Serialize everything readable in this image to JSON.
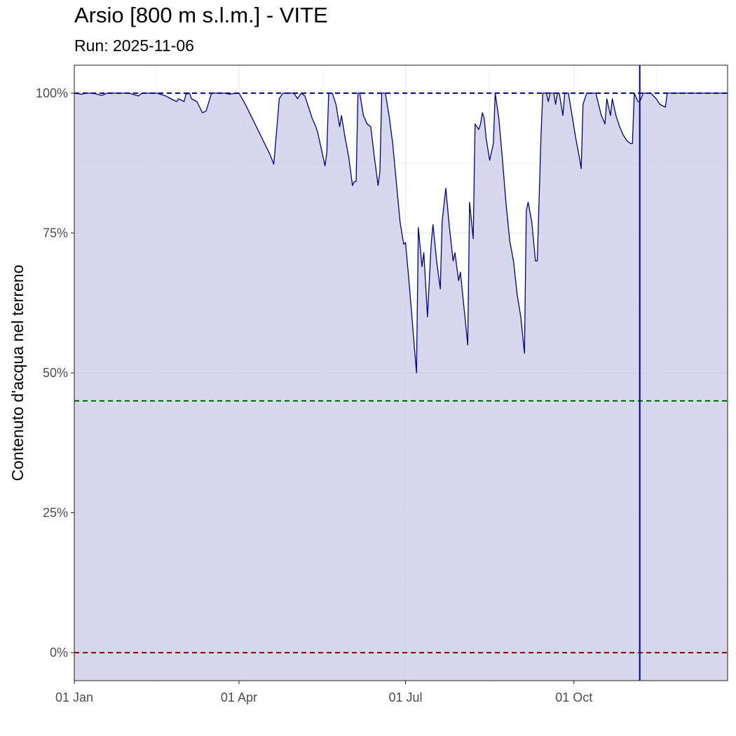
{
  "chart_data": {
    "type": "area",
    "title": "Arsio [800 m s.l.m.] - VITE",
    "subtitle": "Run: 2025-11-06",
    "ylabel": "Contenuto d'acqua nel terreno",
    "xlabel": "",
    "x_domain_days": [
      0,
      357
    ],
    "x_ticks": [
      {
        "day": 0,
        "label": "01 Jan"
      },
      {
        "day": 90,
        "label": "01 Apr"
      },
      {
        "day": 181,
        "label": "01 Jul"
      },
      {
        "day": 273,
        "label": "01 Oct"
      }
    ],
    "ylim": [
      -0.05,
      1.05
    ],
    "y_ticks": [
      {
        "value": 0,
        "label": "0%"
      },
      {
        "value": 0.25,
        "label": "25%"
      },
      {
        "value": 0.5,
        "label": "50%"
      },
      {
        "value": 0.75,
        "label": "75%"
      },
      {
        "value": 1.0,
        "label": "100%"
      }
    ],
    "grid": true,
    "reference_lines": [
      {
        "value": 1.0,
        "color": "#00008b",
        "style": "dashed"
      },
      {
        "value": 0.45,
        "color": "#006400",
        "style": "dashed"
      },
      {
        "value": 0.0,
        "color": "#8b0000",
        "style": "dashed"
      }
    ],
    "current_day_marker": 309,
    "colors": {
      "line": "#00008b",
      "fill": "#cccce8",
      "marker": "#00008b"
    },
    "series": [
      {
        "points": [
          [
            0,
            1.0
          ],
          [
            4,
            0.998
          ],
          [
            6,
            1.0
          ],
          [
            10,
            1.0
          ],
          [
            15,
            0.996
          ],
          [
            18,
            1.0
          ],
          [
            25,
            1.0
          ],
          [
            30,
            1.0
          ],
          [
            35,
            0.995
          ],
          [
            37,
            1.0
          ],
          [
            45,
            1.0
          ],
          [
            50,
            0.995
          ],
          [
            54,
            0.988
          ],
          [
            56,
            0.985
          ],
          [
            57,
            0.99
          ],
          [
            60,
            0.985
          ],
          [
            61,
            0.998
          ],
          [
            63,
            1.0
          ],
          [
            64,
            0.99
          ],
          [
            67,
            0.985
          ],
          [
            70,
            0.965
          ],
          [
            72,
            0.968
          ],
          [
            75,
            1.0
          ],
          [
            79,
            1.0
          ],
          [
            82,
            1.0
          ],
          [
            85,
            0.998
          ],
          [
            88,
            1.0
          ],
          [
            90,
            1.0
          ],
          [
            93,
            0.983
          ],
          [
            95,
            0.97
          ],
          [
            98,
            0.95
          ],
          [
            101,
            0.93
          ],
          [
            104,
            0.91
          ],
          [
            107,
            0.89
          ],
          [
            109,
            0.873
          ],
          [
            111,
            0.95
          ],
          [
            112,
            0.99
          ],
          [
            114,
            1.0
          ],
          [
            120,
            1.0
          ],
          [
            122,
            0.99
          ],
          [
            124,
            1.0
          ],
          [
            126,
            0.995
          ],
          [
            128,
            0.975
          ],
          [
            130,
            0.955
          ],
          [
            132,
            0.94
          ],
          [
            133,
            0.93
          ],
          [
            135,
            0.9
          ],
          [
            137,
            0.87
          ],
          [
            138,
            0.895
          ],
          [
            139,
            1.0
          ],
          [
            141,
            1.0
          ],
          [
            143,
            0.98
          ],
          [
            145,
            0.94
          ],
          [
            146,
            0.96
          ],
          [
            148,
            0.92
          ],
          [
            150,
            0.885
          ],
          [
            152,
            0.835
          ],
          [
            153,
            0.842
          ],
          [
            154,
            0.842
          ],
          [
            155,
            1.0
          ],
          [
            156,
            1.0
          ],
          [
            158,
            0.96
          ],
          [
            160,
            0.945
          ],
          [
            162,
            0.94
          ],
          [
            164,
            0.885
          ],
          [
            166,
            0.835
          ],
          [
            167,
            0.86
          ],
          [
            168,
            1.0
          ],
          [
            170,
            1.0
          ],
          [
            172,
            0.96
          ],
          [
            174,
            0.91
          ],
          [
            176,
            0.84
          ],
          [
            178,
            0.77
          ],
          [
            180,
            0.73
          ],
          [
            181,
            0.733
          ],
          [
            183,
            0.66
          ],
          [
            185,
            0.58
          ],
          [
            187,
            0.5
          ],
          [
            188,
            0.76
          ],
          [
            190,
            0.69
          ],
          [
            191,
            0.715
          ],
          [
            193,
            0.6
          ],
          [
            195,
            0.73
          ],
          [
            196,
            0.765
          ],
          [
            198,
            0.7
          ],
          [
            200,
            0.65
          ],
          [
            201,
            0.77
          ],
          [
            203,
            0.83
          ],
          [
            205,
            0.76
          ],
          [
            207,
            0.7
          ],
          [
            208,
            0.715
          ],
          [
            210,
            0.665
          ],
          [
            211,
            0.68
          ],
          [
            213,
            0.615
          ],
          [
            215,
            0.55
          ],
          [
            216,
            0.805
          ],
          [
            218,
            0.74
          ],
          [
            219,
            0.945
          ],
          [
            221,
            0.935
          ],
          [
            222,
            0.945
          ],
          [
            223,
            0.965
          ],
          [
            224,
            0.955
          ],
          [
            225,
            0.92
          ],
          [
            227,
            0.88
          ],
          [
            229,
            0.91
          ],
          [
            230,
            1.0
          ],
          [
            232,
            0.955
          ],
          [
            234,
            0.88
          ],
          [
            236,
            0.8
          ],
          [
            238,
            0.735
          ],
          [
            240,
            0.7
          ],
          [
            242,
            0.64
          ],
          [
            244,
            0.6
          ],
          [
            246,
            0.535
          ],
          [
            247,
            0.79
          ],
          [
            248,
            0.805
          ],
          [
            250,
            0.77
          ],
          [
            252,
            0.7
          ],
          [
            253,
            0.7
          ],
          [
            255,
            0.92
          ],
          [
            256,
            1.0
          ],
          [
            258,
            1.0
          ],
          [
            259,
            0.985
          ],
          [
            260,
            1.0
          ],
          [
            262,
            1.0
          ],
          [
            263,
            0.98
          ],
          [
            264,
            1.0
          ],
          [
            265,
            1.0
          ],
          [
            267,
            0.96
          ],
          [
            268,
            1.0
          ],
          [
            270,
            1.0
          ],
          [
            272,
            0.96
          ],
          [
            274,
            0.92
          ],
          [
            276,
            0.885
          ],
          [
            277,
            0.865
          ],
          [
            278,
            0.98
          ],
          [
            280,
            1.0
          ],
          [
            285,
            1.0
          ],
          [
            288,
            0.96
          ],
          [
            290,
            0.945
          ],
          [
            291,
            0.99
          ],
          [
            293,
            0.96
          ],
          [
            294,
            0.99
          ],
          [
            296,
            0.96
          ],
          [
            298,
            0.94
          ],
          [
            300,
            0.925
          ],
          [
            302,
            0.915
          ],
          [
            304,
            0.91
          ],
          [
            305,
            0.91
          ],
          [
            306,
            1.0
          ],
          [
            308,
            0.985
          ],
          [
            309,
            0.985
          ],
          [
            311,
            1.0
          ],
          [
            315,
            1.0
          ],
          [
            318,
            0.99
          ],
          [
            320,
            0.98
          ],
          [
            323,
            0.975
          ],
          [
            324,
            1.0
          ],
          [
            329,
            1.0
          ],
          [
            332,
            1.0
          ],
          [
            335,
            1.0
          ],
          [
            340,
            1.0
          ],
          [
            345,
            1.0
          ],
          [
            350,
            1.0
          ],
          [
            357,
            1.0
          ]
        ]
      }
    ]
  }
}
